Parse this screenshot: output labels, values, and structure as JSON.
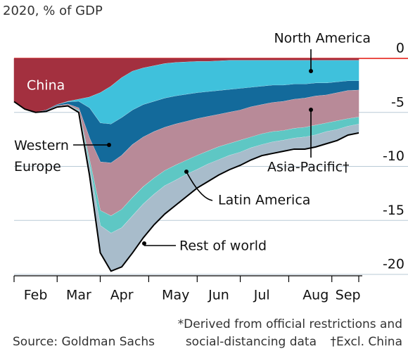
{
  "chart_data": {
    "type": "stacked_area",
    "title": "2020, % of GDP",
    "categories": [
      null,
      null,
      "Feb",
      null,
      null,
      null,
      "Mar",
      null,
      null,
      null,
      "Apr",
      null,
      null,
      null,
      null,
      "May",
      null,
      null,
      null,
      "Jun",
      null,
      null,
      null,
      "Jul",
      null,
      null,
      null,
      null,
      "Aug",
      null,
      null,
      "Sep",
      null
    ],
    "series": [
      {
        "name": "China",
        "color": "#a3303f",
        "values": [
          -4.0,
          -4.7,
          -5.0,
          -4.8,
          -4.3,
          -4.0,
          -3.8,
          -3.6,
          -3.2,
          -2.6,
          -1.8,
          -1.2,
          -0.9,
          -0.7,
          -0.5,
          -0.4,
          -0.35,
          -0.3,
          -0.3,
          -0.25,
          -0.2,
          -0.2,
          -0.2,
          -0.2,
          -0.2,
          -0.2,
          -0.2,
          -0.2,
          -0.2,
          -0.2,
          -0.2,
          -0.2,
          -0.2
        ]
      },
      {
        "name": "North America",
        "color": "#3fc1dc",
        "values": [
          0,
          0,
          0,
          0,
          0,
          -0.05,
          -0.2,
          -1.0,
          -2.8,
          -3.5,
          -3.7,
          -3.6,
          -3.4,
          -3.3,
          -3.2,
          -3.1,
          -3.0,
          -2.9,
          -2.8,
          -2.75,
          -2.7,
          -2.6,
          -2.5,
          -2.4,
          -2.3,
          -2.3,
          -2.2,
          -2.2,
          -2.1,
          -2.1,
          -2.0,
          -1.9,
          -1.9
        ]
      },
      {
        "name": "Western Europe",
        "color": "#136a9b",
        "values": [
          0,
          0,
          0,
          -0.05,
          -0.1,
          -0.2,
          -0.6,
          -2.8,
          -3.6,
          -3.6,
          -3.5,
          -3.2,
          -3.0,
          -2.8,
          -2.7,
          -2.6,
          -2.5,
          -2.4,
          -2.3,
          -2.2,
          -2.1,
          -2.0,
          -1.8,
          -1.7,
          -1.6,
          -1.5,
          -1.4,
          -1.3,
          -1.2,
          -1.1,
          -1.0,
          -0.9,
          -0.85
        ]
      },
      {
        "name": "Asia-Pacific†",
        "color": "#b88a98",
        "values": [
          0,
          0,
          0,
          -0.05,
          -0.05,
          -0.1,
          -0.2,
          -2.0,
          -4.5,
          -4.9,
          -5.0,
          -4.9,
          -4.6,
          -4.3,
          -4.0,
          -3.8,
          -3.6,
          -3.4,
          -3.2,
          -3.0,
          -2.9,
          -2.8,
          -2.8,
          -2.7,
          -2.7,
          -2.7,
          -2.7,
          -2.7,
          -2.7,
          -2.6,
          -2.6,
          -2.6,
          -2.5
        ]
      },
      {
        "name": "Latin America",
        "color": "#5ec7c4",
        "values": [
          0,
          0,
          0,
          0,
          0,
          0,
          -0.1,
          -0.5,
          -1.4,
          -1.6,
          -1.7,
          -1.7,
          -1.6,
          -1.5,
          -1.4,
          -1.4,
          -1.3,
          -1.3,
          -1.2,
          -1.2,
          -1.1,
          -1.1,
          -1.0,
          -1.0,
          -0.95,
          -0.9,
          -0.9,
          -0.9,
          -0.9,
          -0.8,
          -0.8,
          -0.7,
          -0.65
        ]
      },
      {
        "name": "Rest of world",
        "color": "#a8bccb",
        "values": [
          0,
          0,
          0,
          0,
          -0.05,
          -0.05,
          -0.1,
          -0.9,
          -2.5,
          -3.5,
          -3.6,
          -3.4,
          -3.1,
          -2.8,
          -2.6,
          -2.3,
          -2.05,
          -1.7,
          -1.6,
          -1.4,
          -1.3,
          -1.2,
          -1.1,
          -1.0,
          -1.05,
          -1.0,
          -1.0,
          -1.1,
          -1.1,
          -1.1,
          -1.0,
          -0.8,
          -0.8
        ]
      }
    ],
    "ylim": [
      -20,
      0
    ],
    "yticks": [
      0,
      -5,
      -10,
      -15,
      -20
    ],
    "grid": true,
    "source": "Source: Goldman Sachs",
    "notes": [
      "*Derived from official restrictions and",
      "social-distancing data"
    ],
    "footnote": "†Excl. China"
  }
}
